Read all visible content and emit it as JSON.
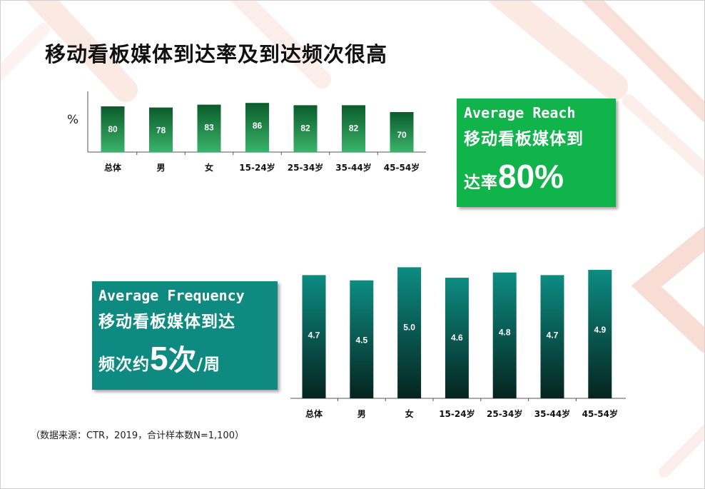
{
  "slide": {
    "title": "移动看板媒体到达率及到达频次很高",
    "source_note": "（数据来源：CTR，2019，合计样本数N=1,100）"
  },
  "reach_box": {
    "line1": "Average Reach",
    "line2": "移动看板媒体到",
    "line3_prefix": "达率",
    "line3_value": "80%"
  },
  "frequency_box": {
    "line1": "Average Frequency",
    "line2": "移动看板媒体到达",
    "line3_prefix": "频次约",
    "line3_value_num": "5",
    "line3_value_char": "次",
    "line3_suffix": "/周"
  },
  "colors": {
    "reach_bar_top": "#0a5c2b",
    "reach_bar_bottom": "#3bb36a",
    "freq_bar_top": "#0d8c82",
    "freq_bar_bottom": "#06241f",
    "reach_box": "#11b34b",
    "freq_box": "#0f8a80"
  },
  "chart_data": [
    {
      "type": "bar",
      "unit_label": "%",
      "categories": [
        "总体",
        "男",
        "女",
        "15-24岁",
        "25-34岁",
        "35-44岁",
        "45-54岁"
      ],
      "values": [
        80,
        78,
        83,
        86,
        82,
        82,
        70
      ],
      "data_labels": [
        "80",
        "78",
        "83",
        "86",
        "82",
        "82",
        "70"
      ],
      "ylim": [
        0,
        100
      ]
    },
    {
      "type": "bar",
      "categories": [
        "总体",
        "男",
        "女",
        "15-24岁",
        "25-34岁",
        "35-44岁",
        "45-54岁"
      ],
      "values": [
        4.7,
        4.5,
        5.0,
        4.6,
        4.8,
        4.7,
        4.9
      ],
      "data_labels": [
        "4.7",
        "4.5",
        "5.0",
        "4.6",
        "4.8",
        "4.7",
        "4.9"
      ],
      "ylim": [
        0,
        5.5
      ]
    }
  ]
}
